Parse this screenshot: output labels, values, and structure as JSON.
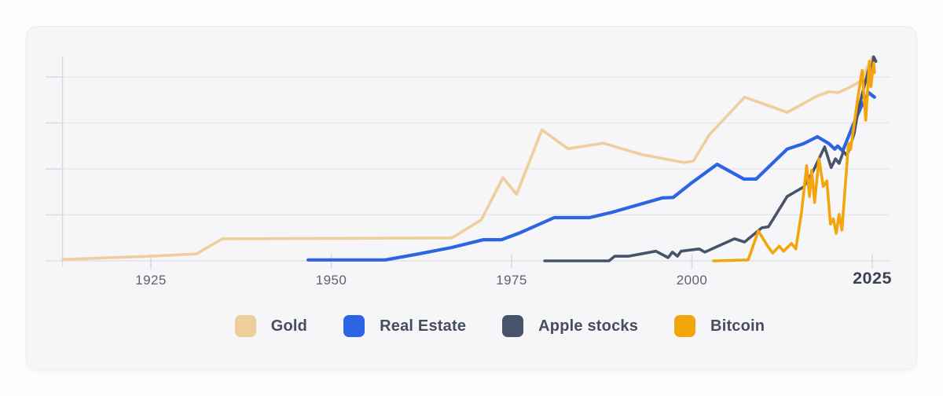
{
  "chart": {
    "x_axis": {
      "labels": [
        "1925",
        "1950",
        "1975",
        "2000",
        "2025"
      ],
      "emphasized_label": "2025"
    }
  },
  "legend": {
    "items": [
      {
        "label": "Gold",
        "color": "#eecf9b"
      },
      {
        "label": "Real Estate",
        "color": "#2b64e4"
      },
      {
        "label": "Apple stocks",
        "color": "#47536a"
      },
      {
        "label": "Bitcoin",
        "color": "#f3a50c"
      }
    ]
  },
  "chart_data": {
    "type": "line",
    "title": "",
    "xlabel": "",
    "ylabel": "",
    "x_ticks": [
      1925,
      1950,
      1975,
      2000,
      2025
    ],
    "x_range": [
      1912.8,
      2026.5
    ],
    "y_axis": {
      "labels_visible": false,
      "gridline_values": [
        1,
        2,
        3,
        4
      ],
      "range": [
        0,
        4.45
      ],
      "note": "no numeric y labels shown; values are relative growth in gridline units"
    },
    "grid": "horizontal-only",
    "legend_position": "bottom",
    "series": [
      {
        "name": "Gold",
        "color": "#eecf9b",
        "points": [
          [
            1912.8,
            0.03
          ],
          [
            1925,
            0.1
          ],
          [
            1931.3,
            0.15
          ],
          [
            1934.9,
            0.48
          ],
          [
            1966.7,
            0.5
          ],
          [
            1970.8,
            0.89
          ],
          [
            1973.8,
            1.81
          ],
          [
            1975.7,
            1.45
          ],
          [
            1979.2,
            2.85
          ],
          [
            1982.8,
            2.44
          ],
          [
            1987.7,
            2.56
          ],
          [
            1993.1,
            2.31
          ],
          [
            1998.9,
            2.14
          ],
          [
            2000.2,
            2.17
          ],
          [
            2002.4,
            2.74
          ],
          [
            2007.3,
            3.56
          ],
          [
            2013.2,
            3.23
          ],
          [
            2017.4,
            3.59
          ],
          [
            2019,
            3.68
          ],
          [
            2020.2,
            3.66
          ],
          [
            2021.7,
            3.76
          ],
          [
            2023.4,
            3.91
          ],
          [
            2025,
            4.43
          ],
          [
            2025.3,
            4.39
          ]
        ]
      },
      {
        "name": "Real Estate",
        "color": "#2b64e4",
        "points": [
          [
            1946.8,
            0.02
          ],
          [
            1957.5,
            0.02
          ],
          [
            1962.1,
            0.15
          ],
          [
            1966.7,
            0.29
          ],
          [
            1971.1,
            0.46
          ],
          [
            1973.6,
            0.46
          ],
          [
            1976,
            0.6
          ],
          [
            1980.9,
            0.94
          ],
          [
            1985.8,
            0.94
          ],
          [
            1989,
            1.06
          ],
          [
            1995.9,
            1.37
          ],
          [
            1997.4,
            1.38
          ],
          [
            1999.9,
            1.69
          ],
          [
            2003.5,
            2.1
          ],
          [
            2007.2,
            1.78
          ],
          [
            2008.9,
            1.78
          ],
          [
            2013.2,
            2.43
          ],
          [
            2015.5,
            2.55
          ],
          [
            2017.4,
            2.7
          ],
          [
            2019,
            2.55
          ],
          [
            2019.8,
            2.43
          ],
          [
            2020.2,
            2.5
          ],
          [
            2020.9,
            2.39
          ],
          [
            2022.3,
            2.94
          ],
          [
            2023.4,
            3.33
          ],
          [
            2024.5,
            3.66
          ],
          [
            2024.9,
            3.61
          ],
          [
            2025.3,
            3.56
          ]
        ]
      },
      {
        "name": "Apple stocks",
        "color": "#47536a",
        "points": [
          [
            1979.6,
            0
          ],
          [
            1988.5,
            0
          ],
          [
            1989.3,
            0.1
          ],
          [
            1991.2,
            0.1
          ],
          [
            1995,
            0.21
          ],
          [
            1996.7,
            0.07
          ],
          [
            1997.3,
            0.19
          ],
          [
            1998,
            0.1
          ],
          [
            1998.5,
            0.21
          ],
          [
            2001,
            0.26
          ],
          [
            2001.8,
            0.19
          ],
          [
            2003.2,
            0.29
          ],
          [
            2005.9,
            0.48
          ],
          [
            2007.3,
            0.41
          ],
          [
            2009.7,
            0.72
          ],
          [
            2010.6,
            0.74
          ],
          [
            2013.2,
            1.4
          ],
          [
            2015.5,
            1.61
          ],
          [
            2016.8,
            1.95
          ],
          [
            2018.4,
            2.48
          ],
          [
            2019.3,
            2.03
          ],
          [
            2019.9,
            2.22
          ],
          [
            2020.4,
            2.12
          ],
          [
            2021,
            2.38
          ],
          [
            2021.5,
            2.29
          ],
          [
            2022.5,
            2.77
          ],
          [
            2023,
            3.23
          ],
          [
            2023.6,
            3.62
          ],
          [
            2024.5,
            4.17
          ],
          [
            2024.8,
            4.05
          ],
          [
            2025.2,
            4.44
          ],
          [
            2025.5,
            4.34
          ]
        ]
      },
      {
        "name": "Bitcoin",
        "color": "#f3a50c",
        "points": [
          [
            2003,
            0
          ],
          [
            2007.8,
            0.02
          ],
          [
            2009.2,
            0.65
          ],
          [
            2010.5,
            0.32
          ],
          [
            2011.2,
            0.17
          ],
          [
            2012.1,
            0.32
          ],
          [
            2012.7,
            0.21
          ],
          [
            2013.8,
            0.38
          ],
          [
            2014.4,
            0.26
          ],
          [
            2015.2,
            1.06
          ],
          [
            2015.9,
            2.07
          ],
          [
            2016.3,
            1.4
          ],
          [
            2016.6,
            1.97
          ],
          [
            2017,
            1.27
          ],
          [
            2017.6,
            2.22
          ],
          [
            2018.2,
            1.62
          ],
          [
            2018.7,
            1.74
          ],
          [
            2019.2,
            0.8
          ],
          [
            2019.6,
            0.92
          ],
          [
            2020,
            0.6
          ],
          [
            2020.4,
            1.01
          ],
          [
            2020.8,
            0.67
          ],
          [
            2021.7,
            2.55
          ],
          [
            2022,
            2.43
          ],
          [
            2023,
            3.54
          ],
          [
            2023.6,
            4.14
          ],
          [
            2024.1,
            3.06
          ],
          [
            2024.6,
            4.34
          ],
          [
            2024.8,
            3.79
          ],
          [
            2025.2,
            4.31
          ],
          [
            2025.3,
            4.1
          ]
        ]
      }
    ]
  }
}
